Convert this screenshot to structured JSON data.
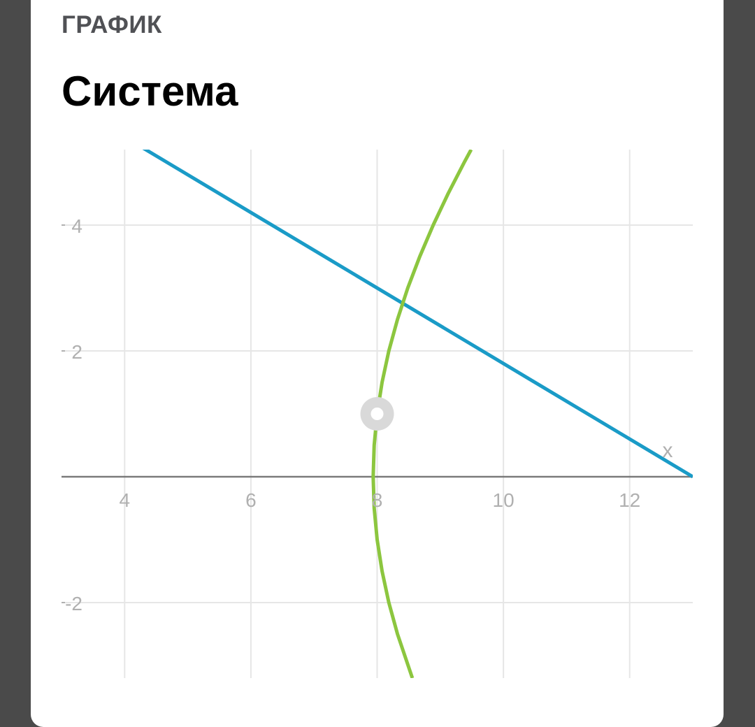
{
  "header": {
    "kicker": "ГРАФИК",
    "title": "Система"
  },
  "chart_data": {
    "type": "line",
    "title": "",
    "xlabel": "x",
    "ylabel": "",
    "xlim": [
      3,
      13
    ],
    "ylim": [
      -3.2,
      5.2
    ],
    "grid": true,
    "x_ticks": [
      4,
      6,
      8,
      10,
      12
    ],
    "x_tick_labels": [
      "4",
      "6",
      "8",
      "10",
      "12"
    ],
    "y_ticks": [
      -2,
      2,
      4
    ],
    "y_tick_labels": [
      "-2",
      "2",
      "4"
    ],
    "series": [
      {
        "color": "#1a9bc7",
        "points": [
          [
            3,
            6
          ],
          [
            13,
            0
          ]
        ]
      },
      {
        "color": "#8cc63f",
        "points": [
          [
            8.558,
            -3.2
          ],
          [
            8.322,
            -2.5
          ],
          [
            8.185,
            -2
          ],
          [
            8.078,
            -1.5
          ],
          [
            8,
            -1
          ],
          [
            7.953,
            -0.5
          ],
          [
            7.937,
            0
          ],
          [
            7.953,
            0.5
          ],
          [
            8,
            1
          ],
          [
            8.078,
            1.5
          ],
          [
            8.185,
            2
          ],
          [
            8.322,
            2.5
          ],
          [
            8.485,
            3
          ],
          [
            8.675,
            3.5
          ],
          [
            8.888,
            4
          ],
          [
            9.124,
            4.5
          ],
          [
            9.381,
            5
          ],
          [
            9.489,
            5.2
          ]
        ]
      }
    ],
    "highlight_point": [
      8,
      1
    ],
    "colors": {
      "grid": "#e6e6e6",
      "axis": "#7a7a7a",
      "tick_label": "#b0b0b0",
      "point_halo": "#d9d9d9"
    }
  }
}
